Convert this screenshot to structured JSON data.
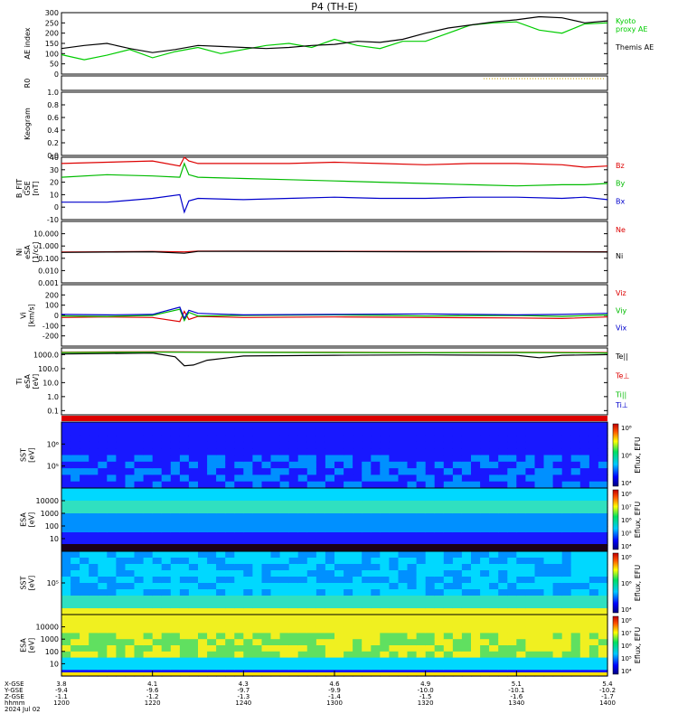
{
  "title": "P4 (TH-E)",
  "colors": {
    "kyoto": "#00cc00",
    "themis_ae": "#000000",
    "bz": "#dd0000",
    "by": "#00bb00",
    "bx": "#0000cc",
    "ne": "#dd0000",
    "ni": "#000000",
    "te_perp": "#dd0000",
    "ti_par": "#00bb00",
    "ti_perp": "#0000cc"
  },
  "time_axis": {
    "tick_labels": [
      "1200",
      "1220",
      "1240",
      "1300",
      "1320",
      "1340",
      "1400"
    ],
    "rows": [
      {
        "label": "X-GSE",
        "values": [
          "3.8",
          "4.1",
          "4.3",
          "4.6",
          "4.9",
          "5.1",
          "5.4"
        ]
      },
      {
        "label": "Y-GSE",
        "values": [
          "-9.4",
          "-9.6",
          "-9.7",
          "-9.9",
          "-10.0",
          "-10.1",
          "-10.2"
        ]
      },
      {
        "label": "Z-GSE",
        "values": [
          "-1.1",
          "-1.2",
          "-1.3",
          "-1.4",
          "-1.5",
          "-1.6",
          "-1.7"
        ]
      },
      {
        "label": "hhmm",
        "values": [
          "1200",
          "1220",
          "1240",
          "1300",
          "1320",
          "1340",
          "1400"
        ]
      }
    ],
    "date": "2024 Jul 02"
  },
  "chart_data": [
    {
      "type": "line",
      "ylabel": "AE index",
      "ylim": [
        0,
        300
      ],
      "yticks": [
        "0",
        "50",
        "100",
        "150",
        "200",
        "250",
        "300"
      ],
      "series": [
        {
          "name": "Kyoto proxy AE",
          "label_lines": [
            "Kyoto",
            "proxy AE"
          ],
          "color_key": "kyoto",
          "x": [
            0,
            5,
            10,
            15,
            20,
            25,
            30,
            35,
            40,
            45,
            50,
            55,
            60,
            65,
            70,
            75,
            80,
            85,
            90,
            95,
            100,
            105,
            110,
            115,
            120
          ],
          "values": [
            95,
            70,
            92,
            120,
            80,
            110,
            130,
            100,
            120,
            140,
            150,
            130,
            170,
            140,
            125,
            160,
            160,
            200,
            240,
            250,
            255,
            215,
            200,
            245,
            250
          ]
        },
        {
          "name": "Themis AE",
          "label_lines": [
            "Themis AE"
          ],
          "color_key": "themis_ae",
          "x": [
            0,
            5,
            10,
            15,
            20,
            25,
            30,
            35,
            40,
            45,
            50,
            55,
            60,
            65,
            70,
            75,
            80,
            85,
            90,
            95,
            100,
            105,
            110,
            115,
            120
          ],
          "values": [
            125,
            140,
            150,
            125,
            105,
            120,
            140,
            135,
            130,
            125,
            130,
            140,
            145,
            160,
            155,
            170,
            200,
            225,
            240,
            255,
            265,
            280,
            275,
            250,
            260
          ]
        }
      ]
    },
    {
      "type": "line",
      "ylabel": "R0",
      "yticks": [],
      "series": []
    },
    {
      "type": "line",
      "ylabel": "Keogram",
      "ylim": [
        0,
        1
      ],
      "yticks": [
        "0.0",
        "0.2",
        "0.4",
        "0.6",
        "0.8",
        "1.0"
      ],
      "series": []
    },
    {
      "type": "line",
      "ylabel_lines": [
        "B_FIT",
        "GSE",
        "[nT]"
      ],
      "ylim": [
        -10,
        40
      ],
      "yticks": [
        "-10",
        "0",
        "10",
        "20",
        "30",
        "40"
      ],
      "series": [
        {
          "name": "Bz",
          "color_key": "bz",
          "x": [
            0,
            10,
            20,
            26,
            27,
            28,
            30,
            40,
            50,
            60,
            70,
            80,
            90,
            100,
            110,
            115,
            120
          ],
          "values": [
            35,
            36,
            37,
            33,
            40,
            37,
            35,
            35,
            35,
            36,
            35,
            34,
            35,
            35,
            34,
            32,
            33
          ]
        },
        {
          "name": "By",
          "color_key": "by",
          "x": [
            0,
            10,
            20,
            26,
            27,
            28,
            30,
            40,
            50,
            60,
            70,
            80,
            90,
            100,
            110,
            115,
            120
          ],
          "values": [
            24,
            26,
            25,
            24,
            35,
            26,
            24,
            23,
            22,
            21,
            20,
            19,
            18,
            17,
            18,
            18,
            19
          ]
        },
        {
          "name": "Bx",
          "color_key": "bx",
          "x": [
            0,
            10,
            20,
            26,
            27,
            28,
            30,
            40,
            50,
            60,
            70,
            80,
            90,
            100,
            110,
            115,
            120
          ],
          "values": [
            4,
            4,
            7,
            10,
            -4,
            5,
            7,
            6,
            7,
            8,
            7,
            7,
            8,
            8,
            7,
            8,
            6
          ]
        }
      ]
    },
    {
      "type": "line",
      "scale": "log",
      "ylabel_lines": [
        "Ni",
        "eSA",
        "[1/cc]"
      ],
      "ylim": [
        0.001,
        100
      ],
      "yticks": [
        "0.001",
        "0.010",
        "0.100",
        "1.000",
        "10.000"
      ],
      "series": [
        {
          "name": "Ne",
          "color_key": "ne",
          "x": [
            0,
            10,
            20,
            27,
            30,
            40,
            60,
            80,
            100,
            120
          ],
          "values": [
            0.32,
            0.34,
            0.36,
            0.33,
            0.38,
            0.39,
            0.37,
            0.36,
            0.35,
            0.34
          ]
        },
        {
          "name": "Ni",
          "color_key": "ni",
          "x": [
            0,
            10,
            20,
            27,
            30,
            40,
            60,
            80,
            100,
            120
          ],
          "values": [
            0.3,
            0.32,
            0.34,
            0.26,
            0.36,
            0.37,
            0.35,
            0.34,
            0.33,
            0.32
          ]
        }
      ]
    },
    {
      "type": "line",
      "ylabel_lines": [
        "Vi",
        "[km/s]"
      ],
      "ylim": [
        -300,
        300
      ],
      "yticks": [
        "-200",
        "-100",
        "0",
        "100",
        "200"
      ],
      "series": [
        {
          "name": "Viz",
          "color_key": "bz",
          "x": [
            0,
            10,
            20,
            26,
            27,
            28,
            30,
            40,
            60,
            80,
            100,
            110,
            120
          ],
          "values": [
            -20,
            -15,
            -20,
            -60,
            40,
            -40,
            -10,
            -20,
            -15,
            -20,
            -25,
            -30,
            -15
          ]
        },
        {
          "name": "Viy",
          "color_key": "by",
          "x": [
            0,
            10,
            20,
            26,
            27,
            28,
            30,
            40,
            60,
            80,
            100,
            110,
            120
          ],
          "values": [
            -5,
            -10,
            0,
            60,
            -50,
            30,
            -5,
            0,
            5,
            -5,
            0,
            -10,
            5
          ]
        },
        {
          "name": "Vix",
          "color_key": "bx",
          "x": [
            0,
            10,
            20,
            26,
            27,
            28,
            30,
            40,
            60,
            80,
            100,
            110,
            120
          ],
          "values": [
            10,
            5,
            10,
            80,
            -30,
            50,
            20,
            5,
            10,
            15,
            5,
            10,
            20
          ]
        }
      ]
    },
    {
      "type": "line",
      "scale": "log",
      "ylabel_lines": [
        "Ti",
        "eSA",
        "[eV]"
      ],
      "ylim": [
        0.05,
        3000
      ],
      "yticks": [
        "0.1",
        "1.0",
        "10.0",
        "100.0",
        "1000.0"
      ],
      "series": [
        {
          "name": "Te||",
          "color_key": "themis_ae",
          "x": [
            0,
            10,
            20,
            25,
            27,
            29,
            32,
            40,
            60,
            80,
            100,
            105,
            110,
            120
          ],
          "values": [
            1100,
            1200,
            1300,
            700,
            160,
            180,
            400,
            800,
            900,
            950,
            900,
            600,
            900,
            1000
          ]
        },
        {
          "name": "Te⊥",
          "color_key": "te_perp",
          "x": [
            0,
            20,
            40,
            60,
            80,
            100,
            120
          ],
          "values": [
            1500,
            1600,
            1500,
            1500,
            1400,
            1500,
            1400
          ]
        },
        {
          "name": "Ti||",
          "color_key": "ti_par",
          "x": [
            0,
            20,
            40,
            60,
            80,
            100,
            120
          ],
          "values": [
            1400,
            1500,
            1450,
            1400,
            1350,
            1400,
            1300
          ]
        }
      ],
      "extra_labels": [
        {
          "text": "Ti⊥",
          "color_key": "ti_perp"
        }
      ]
    },
    {
      "type": "heatmap",
      "ylabel_lines": [
        "SST",
        "[eV]"
      ],
      "yticks": [
        "10⁵",
        "10⁶"
      ],
      "colorbar": {
        "ticks": [
          "10⁸",
          "10⁶",
          "10⁴"
        ],
        "label": "Eflux, EFU"
      }
    },
    {
      "type": "heatmap",
      "ylabel_lines": [
        "ESA",
        "[eV]"
      ],
      "yticks": [
        "10",
        "100",
        "1000",
        "10000"
      ],
      "colorbar": {
        "ticks": [
          "10⁸",
          "10⁷",
          "10⁶",
          "10⁵",
          "10⁴"
        ],
        "label": "Eflux, EFU"
      }
    },
    {
      "type": "heatmap",
      "ylabel_lines": [
        "SST",
        "[eV]"
      ],
      "yticks": [
        "10⁵"
      ],
      "colorbar": {
        "ticks": [
          "10⁸",
          "10⁶",
          "10⁴"
        ],
        "label": "Eflux, EFU"
      }
    },
    {
      "type": "heatmap",
      "ylabel_lines": [
        "ESA",
        "[eV]"
      ],
      "yticks": [
        "10",
        "100",
        "1000",
        "10000"
      ],
      "colorbar": {
        "ticks": [
          "10⁸",
          "10⁷",
          "10⁶",
          "10⁵",
          "10⁴"
        ],
        "label": "Eflux, EFU"
      }
    }
  ]
}
